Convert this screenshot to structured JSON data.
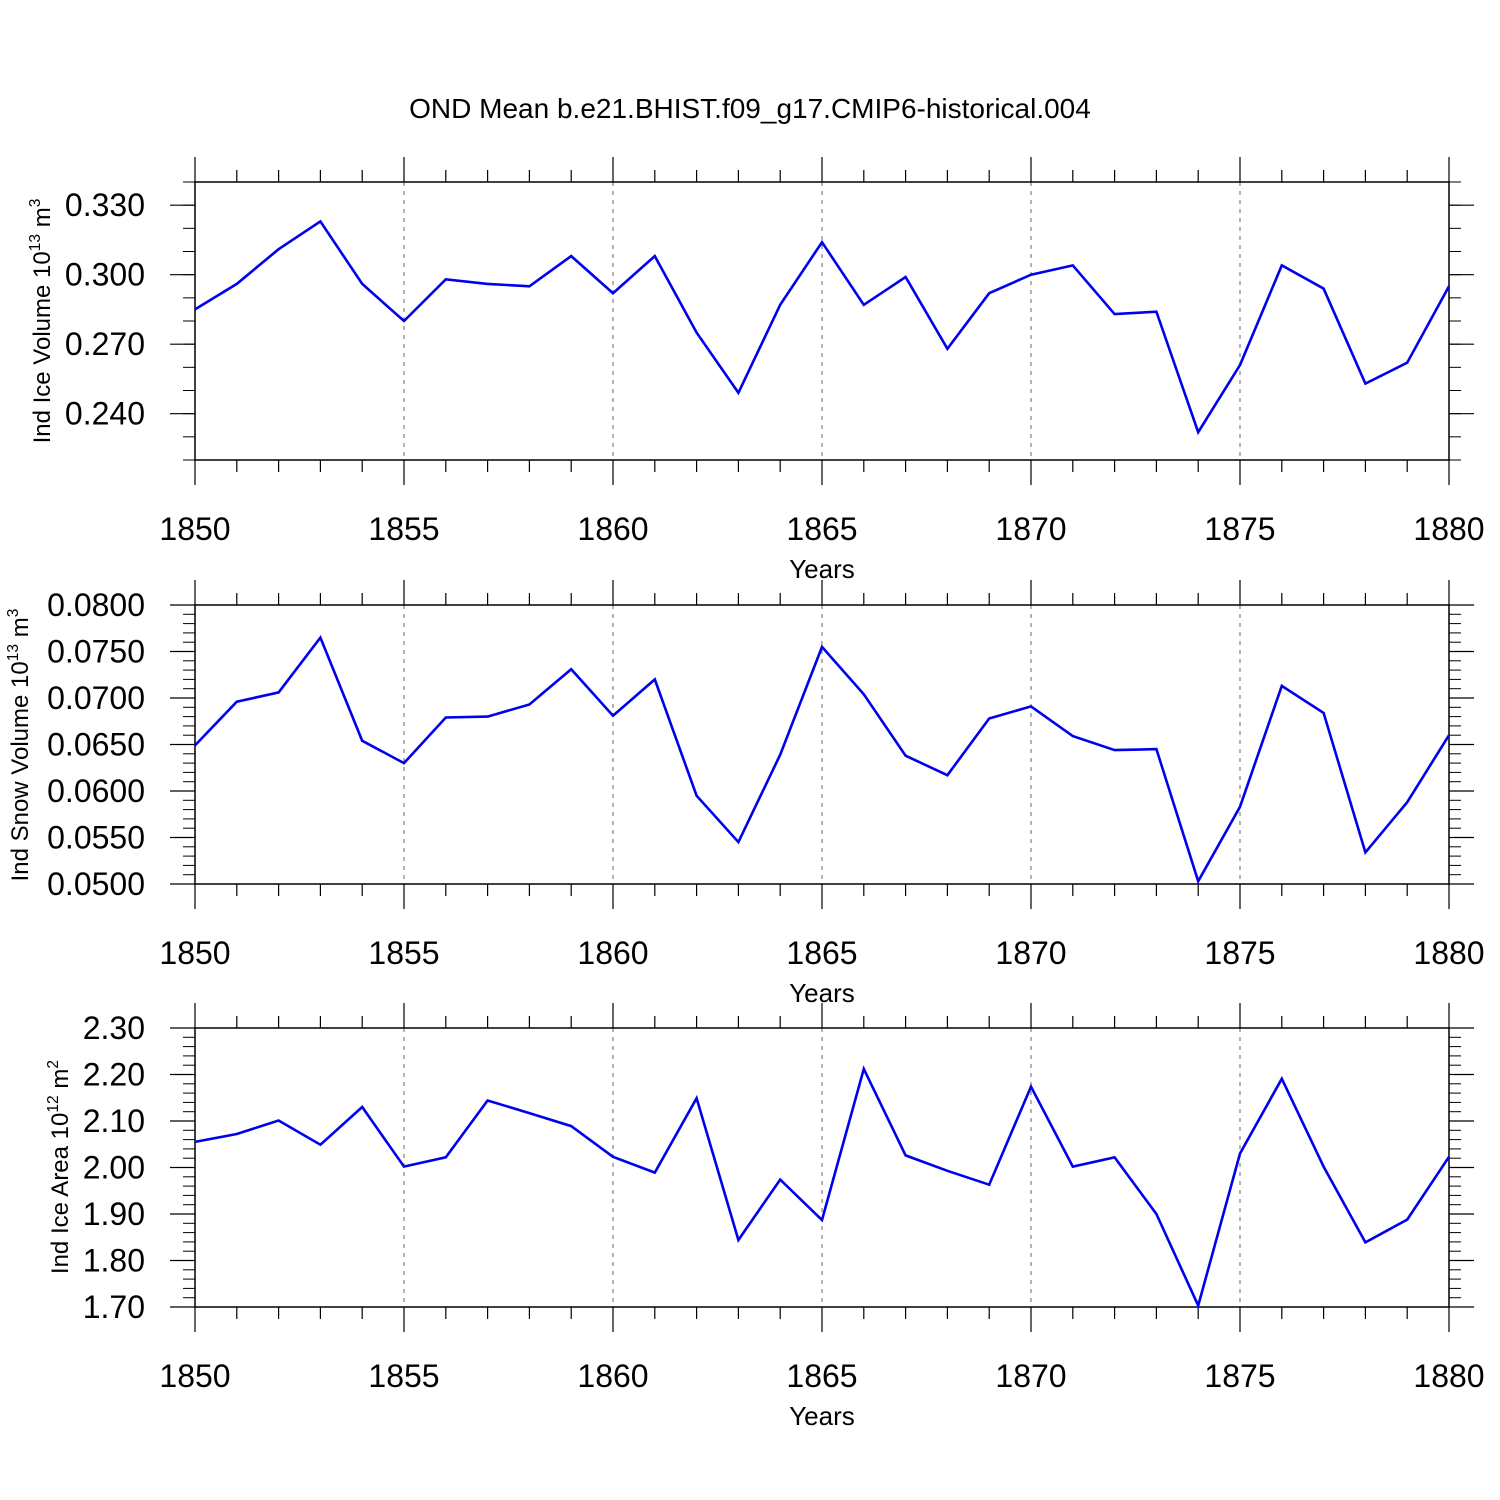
{
  "figure_title": "OND Mean b.e21.BHIST.f09_g17.CMIP6-historical.004",
  "colors": {
    "line": "#0000ee",
    "axis": "#000000",
    "grid": "#808080"
  },
  "chart_data": [
    {
      "type": "line",
      "title": "OND Mean b.e21.BHIST.f09_g17.CMIP6-historical.004",
      "xlabel": "Years",
      "ylabel_text": "Ind Ice Volume 10",
      "ylabel_exp": "13",
      "ylabel_unit": " m",
      "ylabel_unit_exp": "3",
      "xlim": [
        1850,
        1880
      ],
      "ylim": [
        0.22,
        0.34
      ],
      "xticks": [
        1850,
        1855,
        1860,
        1865,
        1870,
        1875,
        1880
      ],
      "xtick_labels": [
        "1850",
        "1855",
        "1860",
        "1865",
        "1870",
        "1875",
        "1880"
      ],
      "yticks": [
        0.24,
        0.27,
        0.3,
        0.33
      ],
      "ytick_labels": [
        "0.240",
        "0.270",
        "0.300",
        "0.330"
      ],
      "yminor_step": 0.01,
      "grid": "vertical dashed at major x ticks",
      "x": [
        1850,
        1851,
        1852,
        1853,
        1854,
        1855,
        1856,
        1857,
        1858,
        1859,
        1860,
        1861,
        1862,
        1863,
        1864,
        1865,
        1866,
        1867,
        1868,
        1869,
        1870,
        1871,
        1872,
        1873,
        1874,
        1875,
        1876,
        1877,
        1878,
        1879,
        1880
      ],
      "values": [
        0.285,
        0.296,
        0.311,
        0.323,
        0.296,
        0.28,
        0.298,
        0.296,
        0.295,
        0.308,
        0.292,
        0.308,
        0.275,
        0.249,
        0.287,
        0.314,
        0.287,
        0.299,
        0.268,
        0.292,
        0.3,
        0.304,
        0.283,
        0.284,
        0.232,
        0.261,
        0.304,
        0.294,
        0.253,
        0.262,
        0.295
      ]
    },
    {
      "type": "line",
      "xlabel": "Years",
      "ylabel_text": "Ind Snow Volume 10",
      "ylabel_exp": "13",
      "ylabel_unit": " m",
      "ylabel_unit_exp": "3",
      "xlim": [
        1850,
        1880
      ],
      "ylim": [
        0.05,
        0.08
      ],
      "xticks": [
        1850,
        1855,
        1860,
        1865,
        1870,
        1875,
        1880
      ],
      "xtick_labels": [
        "1850",
        "1855",
        "1860",
        "1865",
        "1870",
        "1875",
        "1880"
      ],
      "yticks": [
        0.05,
        0.055,
        0.06,
        0.065,
        0.07,
        0.075,
        0.08
      ],
      "ytick_labels": [
        "0.0500",
        "0.0550",
        "0.0600",
        "0.0650",
        "0.0700",
        "0.0750",
        "0.0800"
      ],
      "yminor_step": 0.001,
      "grid": "vertical dashed at major x ticks",
      "x": [
        1850,
        1851,
        1852,
        1853,
        1854,
        1855,
        1856,
        1857,
        1858,
        1859,
        1860,
        1861,
        1862,
        1863,
        1864,
        1865,
        1866,
        1867,
        1868,
        1869,
        1870,
        1871,
        1872,
        1873,
        1874,
        1875,
        1876,
        1877,
        1878,
        1879,
        1880
      ],
      "values": [
        0.0649,
        0.0696,
        0.0706,
        0.0765,
        0.0654,
        0.063,
        0.0679,
        0.068,
        0.0693,
        0.0731,
        0.0681,
        0.072,
        0.0595,
        0.0545,
        0.0639,
        0.0755,
        0.0704,
        0.0638,
        0.0617,
        0.0678,
        0.0691,
        0.0659,
        0.0644,
        0.0645,
        0.0503,
        0.0583,
        0.0713,
        0.0684,
        0.0534,
        0.0588,
        0.066
      ]
    },
    {
      "type": "line",
      "xlabel": "Years",
      "ylabel_text": "Ind Ice Area 10",
      "ylabel_exp": "12",
      "ylabel_unit": " m",
      "ylabel_unit_exp": "2",
      "xlim": [
        1850,
        1880
      ],
      "ylim": [
        1.7,
        2.3
      ],
      "xticks": [
        1850,
        1855,
        1860,
        1865,
        1870,
        1875,
        1880
      ],
      "xtick_labels": [
        "1850",
        "1855",
        "1860",
        "1865",
        "1870",
        "1875",
        "1880"
      ],
      "yticks": [
        1.7,
        1.8,
        1.9,
        2.0,
        2.1,
        2.2,
        2.3
      ],
      "ytick_labels": [
        "1.70",
        "1.80",
        "1.90",
        "2.00",
        "2.10",
        "2.20",
        "2.30"
      ],
      "yminor_step": 0.02,
      "grid": "vertical dashed at major x ticks",
      "x": [
        1850,
        1851,
        1852,
        1853,
        1854,
        1855,
        1856,
        1857,
        1858,
        1859,
        1860,
        1861,
        1862,
        1863,
        1864,
        1865,
        1866,
        1867,
        1868,
        1869,
        1870,
        1871,
        1872,
        1873,
        1874,
        1875,
        1876,
        1877,
        1878,
        1879,
        1880
      ],
      "values": [
        2.055,
        2.072,
        2.101,
        2.049,
        2.13,
        2.002,
        2.022,
        2.144,
        2.117,
        2.089,
        2.023,
        1.989,
        2.149,
        1.844,
        1.974,
        1.887,
        2.212,
        2.026,
        1.993,
        1.963,
        2.174,
        2.002,
        2.022,
        1.9,
        1.703,
        2.03,
        2.191,
        2.002,
        1.839,
        1.888,
        2.023
      ]
    }
  ]
}
